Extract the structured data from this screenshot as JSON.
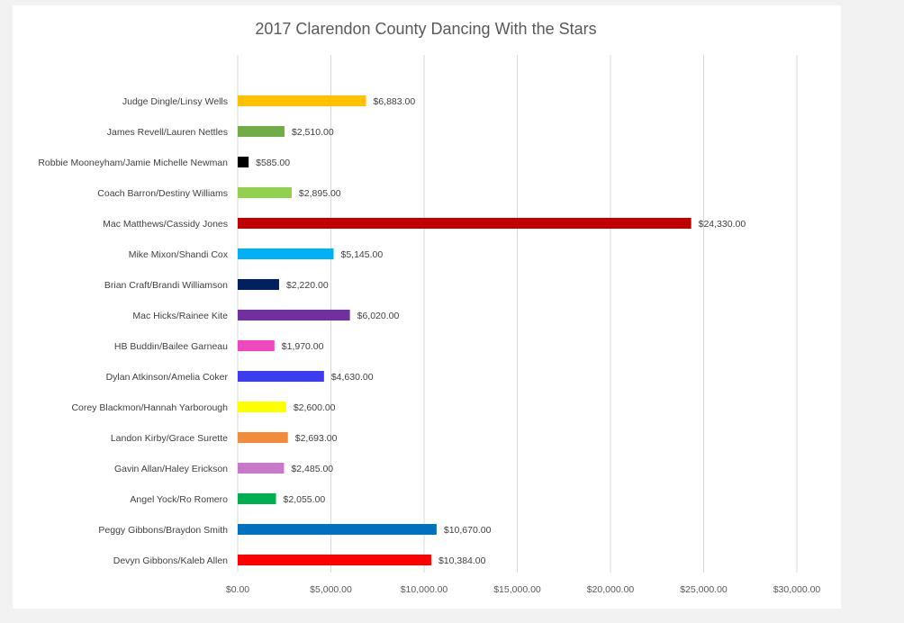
{
  "chart_data": {
    "type": "bar",
    "orientation": "horizontal",
    "title": "2017 Clarendon County Dancing With the Stars",
    "xlabel": "",
    "ylabel": "",
    "xlim": [
      0,
      30000
    ],
    "grid": true,
    "legend": "none",
    "x_tick_labels": [
      "$0.00",
      "$5,000.00",
      "$10,000.00",
      "$15,000.00",
      "$20,000.00",
      "$25,000.00",
      "$30,000.00"
    ],
    "x_ticks": [
      0,
      5000,
      10000,
      15000,
      20000,
      25000,
      30000
    ],
    "categories": [
      "Judge Dingle/Linsy Wells",
      "James Revell/Lauren Nettles",
      "Robbie Mooneyham/Jamie Michelle Newman",
      "Coach Barron/Destiny Williams",
      "Mac Matthews/Cassidy Jones",
      "Mike Mixon/Shandi Cox",
      "Brian Craft/Brandi Williamson",
      "Mac Hicks/Rainee Kite",
      "HB Buddin/Bailee Garneau",
      "Dylan Atkinson/Amelia Coker",
      "Corey Blackmon/Hannah Yarborough",
      "Landon Kirby/Grace Surette",
      "Gavin Allan/Haley Erickson",
      "Angel Yock/Ro Romero",
      "Peggy Gibbons/Braydon Smith",
      "Devyn Gibbons/Kaleb Allen"
    ],
    "values": [
      6883,
      2510,
      585,
      2895,
      24330,
      5145,
      2220,
      6020,
      1970,
      4630,
      2600,
      2693,
      2485,
      2055,
      10670,
      10384
    ],
    "data_labels": [
      "$6,883.00",
      "$2,510.00",
      "$585.00",
      "$2,895.00",
      "$24,330.00",
      "$5,145.00",
      "$2,220.00",
      "$6,020.00",
      "$1,970.00",
      "$4,630.00",
      "$2,600.00",
      "$2,693.00",
      "$2,485.00",
      "$2,055.00",
      "$10,670.00",
      "$10,384.00"
    ],
    "colors": [
      "#FFC000",
      "#70AD47",
      "#000000",
      "#92D050",
      "#C00000",
      "#00B0F0",
      "#002060",
      "#7030A0",
      "#F046C0",
      "#3C3CF0",
      "#FFFF00",
      "#F08C3C",
      "#C878C8",
      "#00B050",
      "#0070C0",
      "#FF0000"
    ]
  }
}
